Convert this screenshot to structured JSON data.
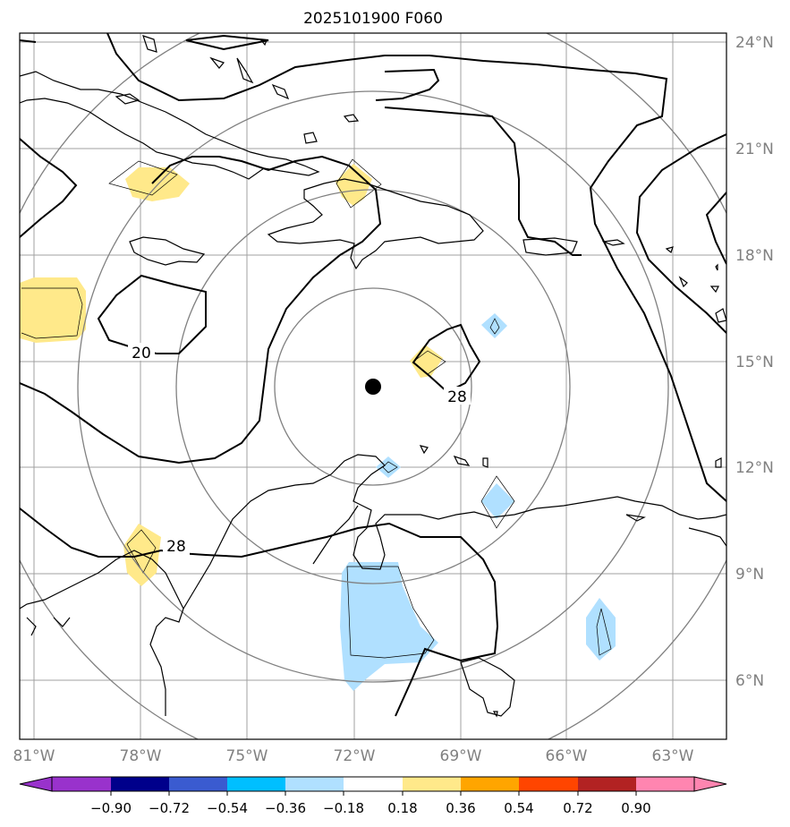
{
  "title": "2025101900 F060",
  "lon_labels": [
    "81°W",
    "78°W",
    "75°W",
    "72°W",
    "69°W",
    "66°W",
    "63°W"
  ],
  "lat_labels": [
    "24°N",
    "21°N",
    "18°N",
    "15°N",
    "12°N",
    "9°N",
    "6°N"
  ],
  "contour_labels": [
    "20",
    "28",
    "28"
  ],
  "center_marker": {
    "lon": -71.6,
    "lat": 14.3
  },
  "colorbar": {
    "ticks": [
      "−0.90",
      "−0.72",
      "−0.54",
      "−0.36",
      "−0.18",
      "0.18",
      "0.36",
      "0.54",
      "0.72",
      "0.90"
    ],
    "colors": [
      "#9932cc",
      "#00008b",
      "#3a5bd0",
      "#00bfff",
      "#b0e0ff",
      "#ffffff",
      "#ffe98a",
      "#ffa500",
      "#ff4500",
      "#b22222",
      "#ff85b0"
    ]
  },
  "colors": {
    "positive_fill": "#ffe98a",
    "negative_fill": "#b0e0ff",
    "contour": "#000000",
    "range_ring": "#808080",
    "grid": "#a0a0a0"
  }
}
